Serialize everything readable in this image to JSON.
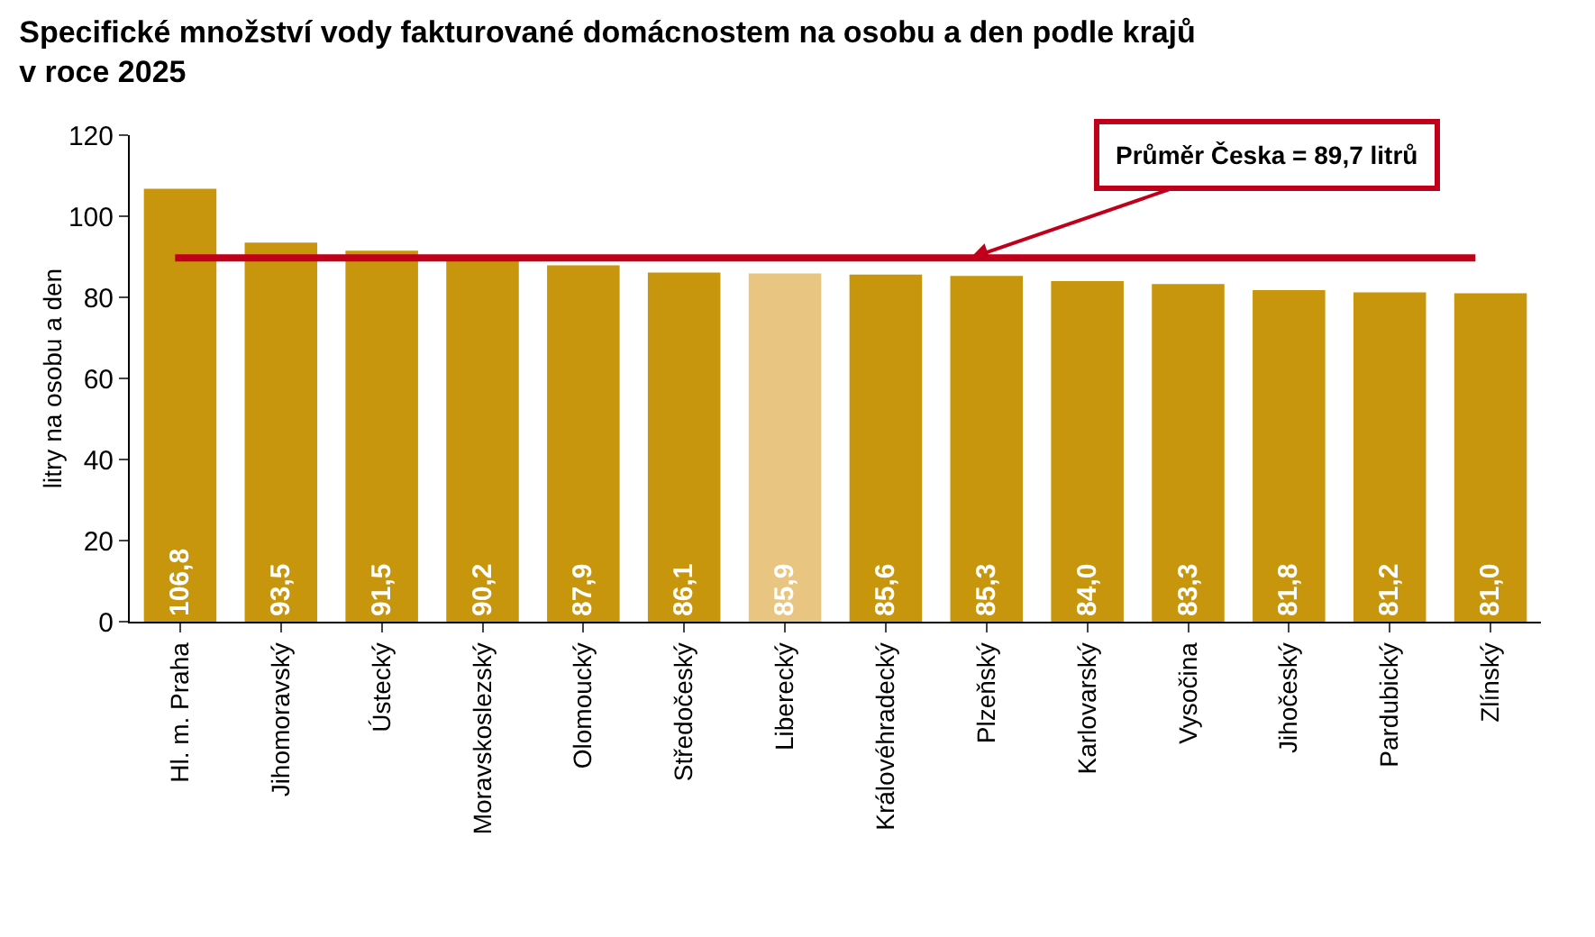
{
  "chart_data": {
    "type": "bar",
    "title": "Specifické množství vody fakturované domácnostem na osobu a den podle krajů\nv roce 2025",
    "ylabel": "litry na osobu a den",
    "categories": [
      "Hl. m. Praha",
      "Jihomoravský",
      "Ústecký",
      "Moravskoslezský",
      "Olomoucký",
      "Středočeský",
      "Liberecký",
      "Královéhradecký",
      "Plzeňský",
      "Karlovarský",
      "Vysočina",
      "Jihočeský",
      "Pardubický",
      "Zlínský"
    ],
    "values": [
      106.8,
      93.5,
      91.5,
      90.2,
      87.9,
      86.1,
      85.9,
      85.6,
      85.3,
      84.0,
      83.3,
      81.8,
      81.2,
      81.0
    ],
    "value_labels": [
      "106,8",
      "93,5",
      "91,5",
      "90,2",
      "87,9",
      "86,1",
      "85,9",
      "85,6",
      "85,3",
      "84,0",
      "83,3",
      "81,8",
      "81,2",
      "81,0"
    ],
    "colors": [
      "#c8960c",
      "#c8960c",
      "#c8960c",
      "#c8960c",
      "#c8960c",
      "#c8960c",
      "#e8c581",
      "#c8960c",
      "#c8960c",
      "#c8960c",
      "#c8960c",
      "#c8960c",
      "#c8960c",
      "#c8960c"
    ],
    "ylim": [
      0,
      120
    ],
    "yticks": [
      0,
      20,
      40,
      60,
      80,
      100,
      120
    ],
    "grid": false,
    "ref_lines": [
      {
        "axis": "y",
        "value": 89.7,
        "label": "Průměr Česka = 89,7 litrů",
        "color": "#c0001a",
        "line_style": "solid"
      }
    ]
  }
}
